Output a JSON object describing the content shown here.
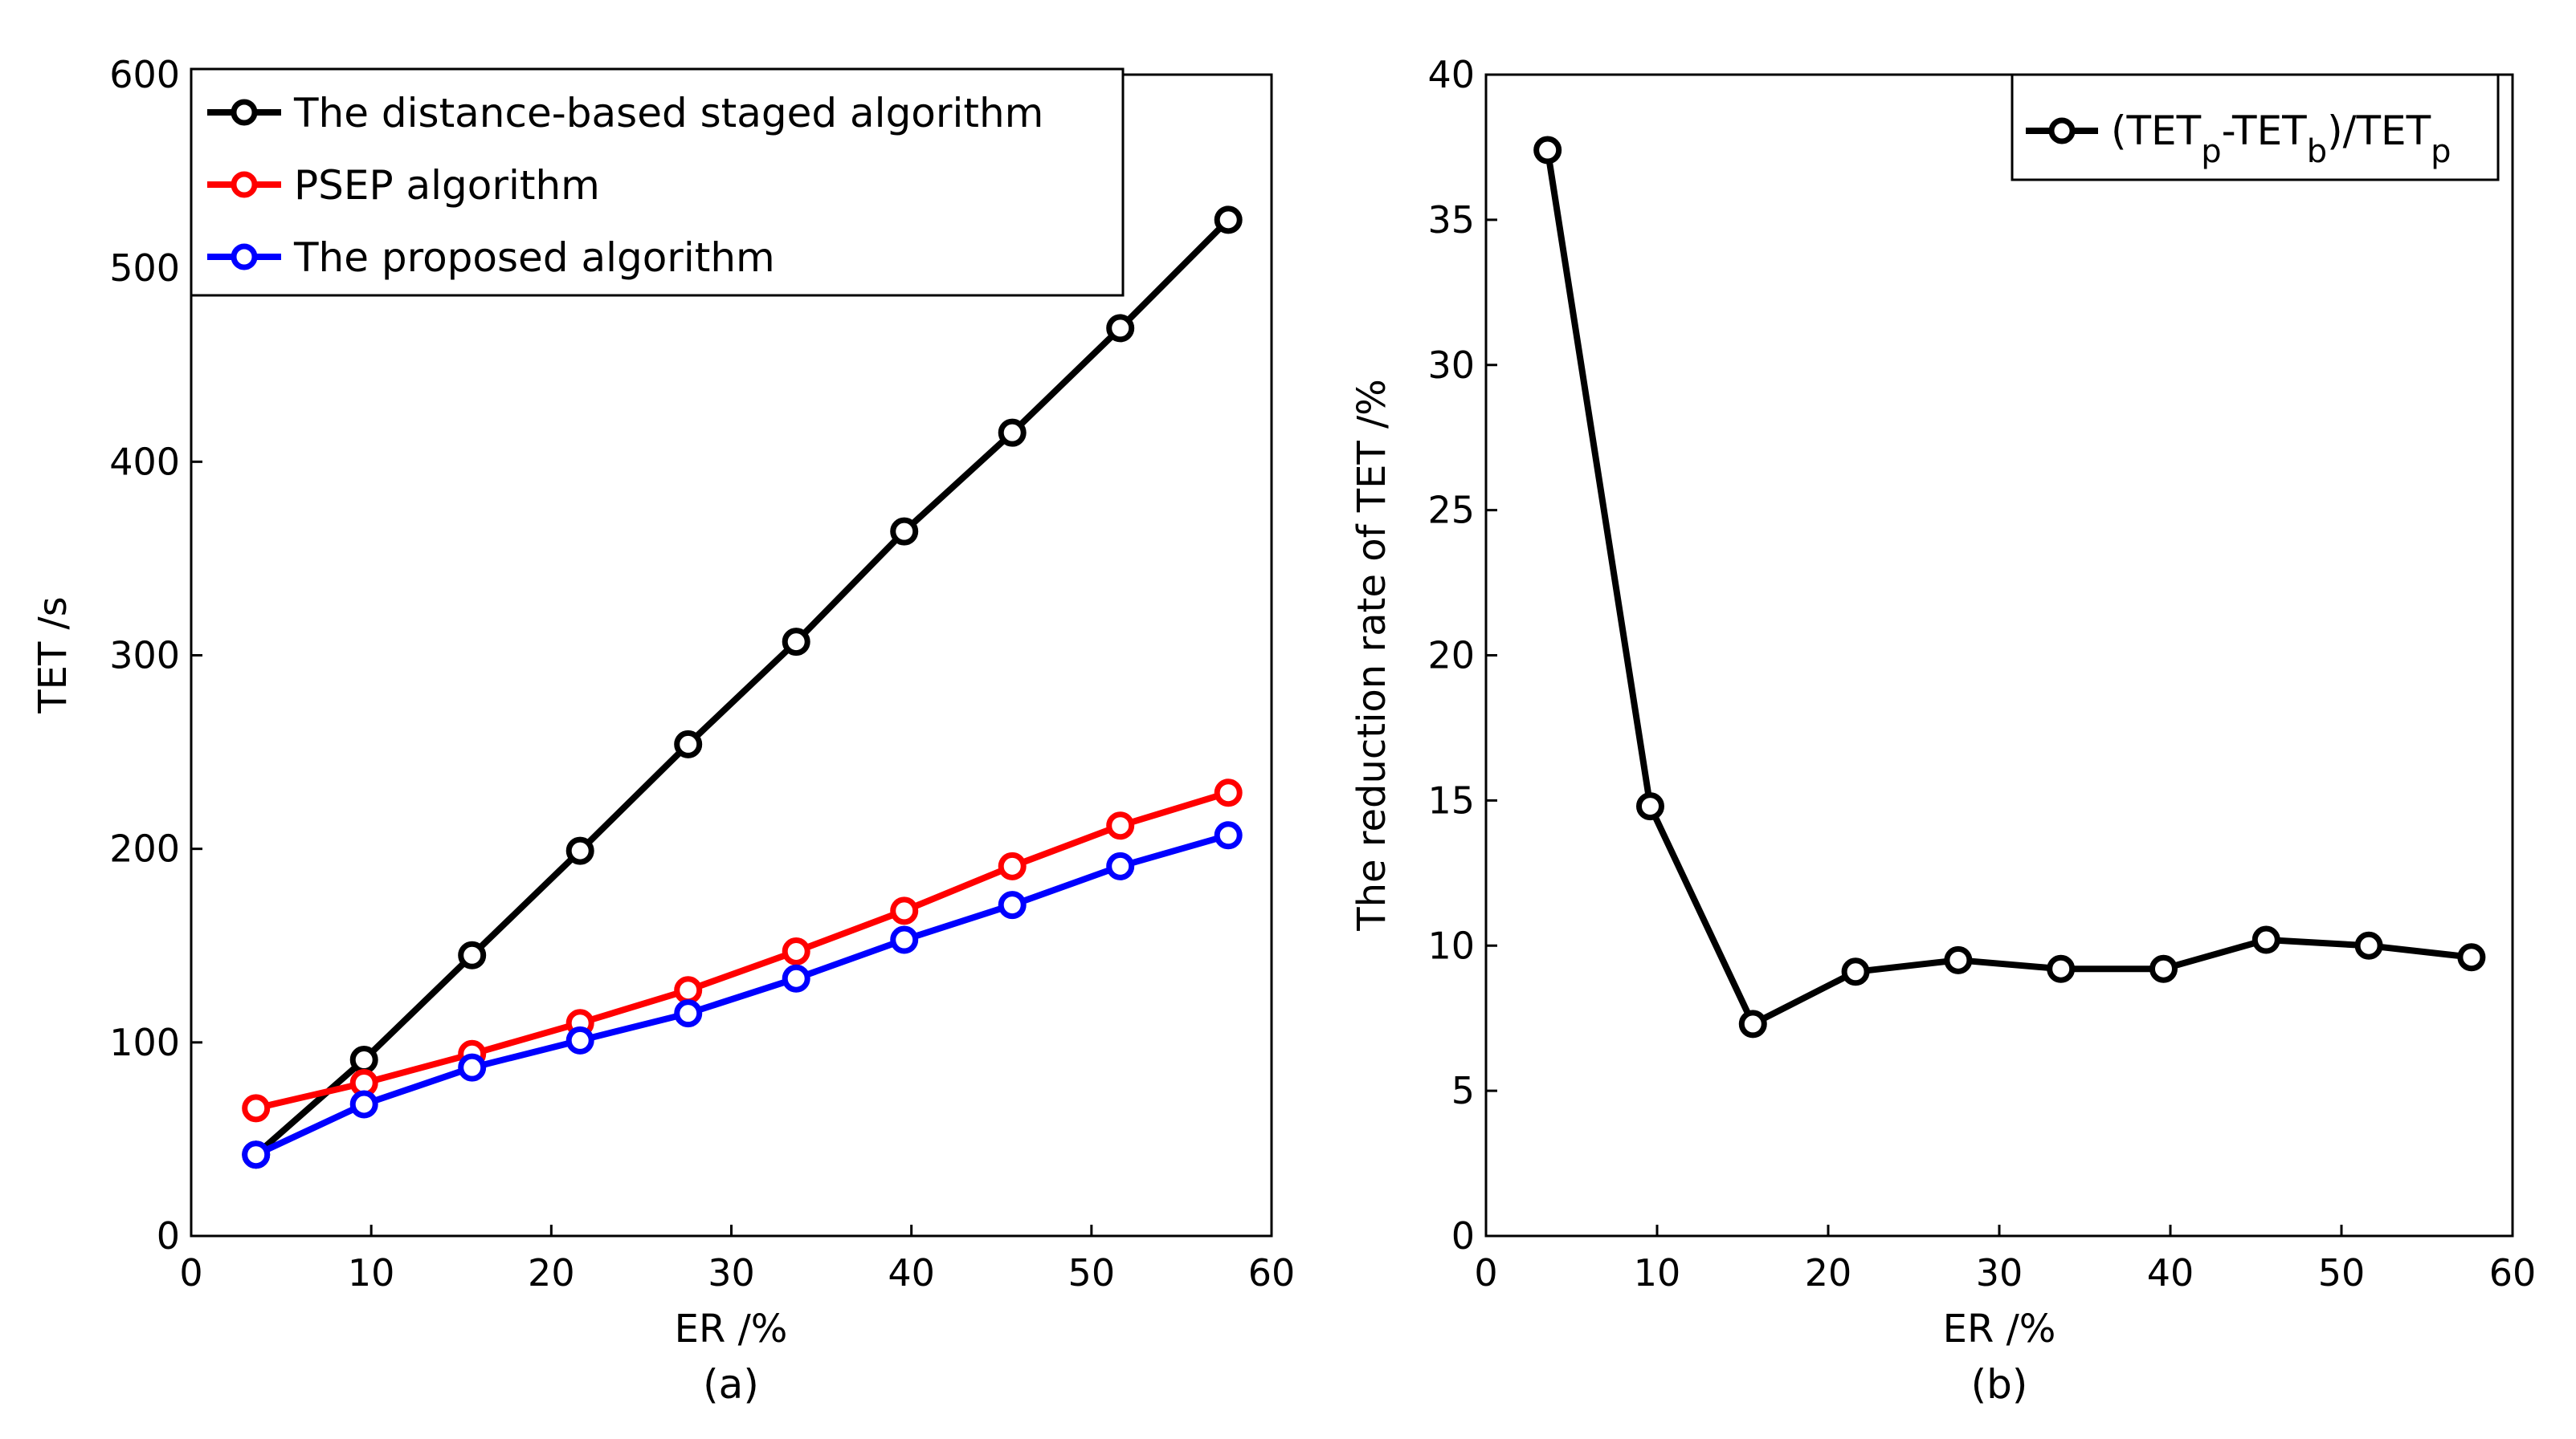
{
  "chart_data": [
    {
      "id": "a",
      "type": "line",
      "caption": "(a)",
      "title": "",
      "xlabel": "ER /%",
      "ylabel": "TET /s",
      "xlim": [
        0,
        60
      ],
      "ylim": [
        0,
        600
      ],
      "xticks": [
        0,
        10,
        20,
        30,
        40,
        50,
        60
      ],
      "yticks": [
        0,
        100,
        200,
        300,
        400,
        500,
        600
      ],
      "x": [
        3.6,
        9.6,
        15.6,
        21.6,
        27.6,
        33.6,
        39.6,
        45.6,
        51.6,
        57.6
      ],
      "legend_position": "top-left",
      "series": [
        {
          "name": "The distance-based staged algorithm",
          "color": "#000000",
          "marker": "circle",
          "values": [
            42,
            91,
            145,
            199,
            254,
            307,
            364,
            415,
            469,
            525
          ]
        },
        {
          "name": "PSEP algorithm",
          "color": "#ff0000",
          "marker": "circle",
          "values": [
            66,
            79,
            94,
            110,
            127,
            147,
            168,
            191,
            212,
            229
          ]
        },
        {
          "name": "The proposed algorithm",
          "color": "#0000ff",
          "marker": "circle",
          "values": [
            42,
            68,
            87,
            101,
            115,
            133,
            153,
            171,
            191,
            207
          ]
        }
      ]
    },
    {
      "id": "b",
      "type": "line",
      "caption": "(b)",
      "title": "",
      "xlabel": "ER /%",
      "ylabel": "The reduction rate of TET /%",
      "xlim": [
        0,
        60
      ],
      "ylim": [
        0,
        40
      ],
      "xticks": [
        0,
        10,
        20,
        30,
        40,
        50,
        60
      ],
      "yticks": [
        0,
        5,
        10,
        15,
        20,
        25,
        30,
        35,
        40
      ],
      "x": [
        3.6,
        9.6,
        15.6,
        21.6,
        27.6,
        33.6,
        39.6,
        45.6,
        51.6,
        57.6
      ],
      "legend_position": "top-right",
      "legend_label": {
        "open": "(TET",
        "sub1": "p",
        "mid": "-TET",
        "sub2": "b",
        "slash": ")/TET",
        "sub3": "p"
      },
      "series": [
        {
          "name": "(TETp-TETb)/TETp",
          "color": "#000000",
          "marker": "circle",
          "values": [
            37.4,
            14.8,
            7.3,
            9.1,
            9.5,
            9.2,
            9.2,
            10.2,
            10.0,
            9.6
          ]
        }
      ]
    }
  ]
}
